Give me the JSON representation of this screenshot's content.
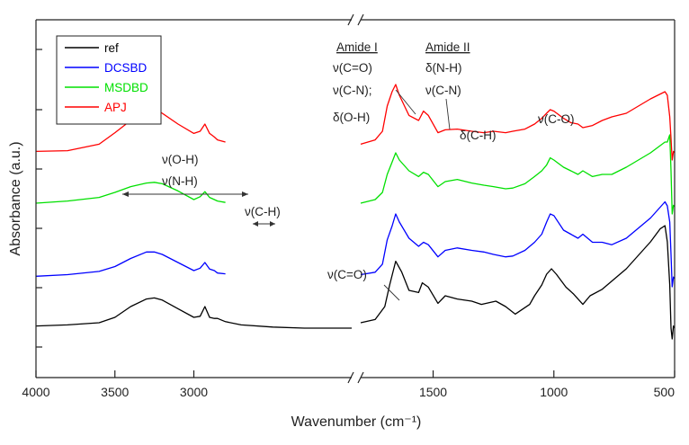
{
  "chart_data": {
    "type": "line",
    "xlabel": "Wavenumber (cm⁻¹)",
    "ylabel": "Absorbance (a.u.)",
    "x_ticks": [
      4000,
      3500,
      3000,
      1500,
      1000,
      500
    ],
    "x_tick_labels": [
      "4000",
      "3500",
      "3000",
      "1500",
      "1000",
      "500"
    ],
    "x_break": [
      2000,
      1800
    ],
    "legend": {
      "placement": "top-left",
      "entries": [
        {
          "name": "ref",
          "color": "#000000"
        },
        {
          "name": "DCSBD",
          "color": "#0000ff"
        },
        {
          "name": "MSDBD",
          "color": "#00e000"
        },
        {
          "name": "APJ",
          "color": "#ff0000"
        }
      ]
    },
    "annotations": {
      "amide1_header": "Amide I",
      "amide1_line1": "ν(C=O)",
      "amide1_line2": "ν(C-N);",
      "amide1_line3": "δ(O-H)",
      "amide2_header": "Amide II",
      "amide2_line1": "δ(N-H)",
      "amide2_line2": "ν(C-N)",
      "ch_bend": "δ(C-H)",
      "co_stretch": "ν(C-O)",
      "oh_stretch": "ν(O-H)",
      "nh_stretch": "ν(N-H)",
      "ch_stretch": "ν(C-H)",
      "co_stretch_ref": "ν(C=O)"
    },
    "series": [
      {
        "name": "ref",
        "color": "#000000",
        "x": [
          4000,
          3800,
          3600,
          3500,
          3400,
          3300,
          3250,
          3200,
          3100,
          3000,
          2960,
          2930,
          2900,
          2870,
          2850,
          2800,
          2700,
          2500,
          2300,
          2100,
          2000,
          1800,
          1740,
          1700,
          1680,
          1655,
          1630,
          1600,
          1560,
          1545,
          1520,
          1480,
          1450,
          1400,
          1340,
          1300,
          1240,
          1200,
          1160,
          1100,
          1080,
          1050,
          1030,
          1010,
          990,
          950,
          920,
          900,
          880,
          850,
          800,
          700,
          600,
          560,
          540,
          530,
          520,
          515,
          510,
          505,
          500
        ],
        "y": [
          0.02,
          0.03,
          0.05,
          0.1,
          0.2,
          0.27,
          0.28,
          0.26,
          0.18,
          0.1,
          0.11,
          0.2,
          0.1,
          0.09,
          0.09,
          0.06,
          0.03,
          0.01,
          0.0,
          0.0,
          0.0,
          0.05,
          0.08,
          0.2,
          0.4,
          0.62,
          0.52,
          0.35,
          0.33,
          0.42,
          0.38,
          0.23,
          0.3,
          0.27,
          0.25,
          0.22,
          0.25,
          0.2,
          0.13,
          0.22,
          0.3,
          0.4,
          0.5,
          0.55,
          0.5,
          0.38,
          0.32,
          0.27,
          0.22,
          0.3,
          0.36,
          0.55,
          0.8,
          0.92,
          0.95,
          0.8,
          0.4,
          0.0,
          -0.1,
          0.02,
          0.0
        ]
      },
      {
        "name": "DCSBD",
        "color": "#0000ff",
        "x": [
          4000,
          3800,
          3600,
          3500,
          3400,
          3300,
          3250,
          3200,
          3100,
          3000,
          2960,
          2930,
          2900,
          2870,
          2850,
          2800,
          1800,
          1740,
          1710,
          1690,
          1670,
          1655,
          1640,
          1600,
          1560,
          1540,
          1520,
          1480,
          1450,
          1400,
          1340,
          1290,
          1250,
          1200,
          1170,
          1120,
          1080,
          1050,
          1030,
          1015,
          1000,
          960,
          930,
          900,
          880,
          840,
          800,
          760,
          700,
          600,
          540,
          530,
          520,
          515,
          510,
          505,
          500
        ],
        "y": [
          0.03,
          0.05,
          0.09,
          0.15,
          0.25,
          0.33,
          0.33,
          0.3,
          0.2,
          0.1,
          0.13,
          0.2,
          0.12,
          0.1,
          0.07,
          0.06,
          0.05,
          0.08,
          0.18,
          0.48,
          0.65,
          0.8,
          0.7,
          0.5,
          0.4,
          0.45,
          0.42,
          0.27,
          0.35,
          0.38,
          0.35,
          0.33,
          0.3,
          0.27,
          0.28,
          0.35,
          0.45,
          0.55,
          0.7,
          0.8,
          0.78,
          0.6,
          0.55,
          0.5,
          0.55,
          0.45,
          0.45,
          0.42,
          0.5,
          0.75,
          0.95,
          0.9,
          0.7,
          0.3,
          -0.1,
          0.02,
          0.0
        ]
      },
      {
        "name": "MSDBD",
        "color": "#00e000",
        "x": [
          4000,
          3800,
          3600,
          3500,
          3400,
          3300,
          3250,
          3200,
          3100,
          3000,
          2960,
          2930,
          2900,
          2870,
          2850,
          2800,
          1800,
          1740,
          1710,
          1690,
          1670,
          1655,
          1640,
          1600,
          1560,
          1540,
          1520,
          1480,
          1450,
          1400,
          1340,
          1290,
          1250,
          1200,
          1170,
          1120,
          1080,
          1050,
          1030,
          1015,
          1000,
          960,
          930,
          900,
          880,
          840,
          800,
          760,
          700,
          600,
          540,
          530,
          520,
          515,
          510,
          505,
          500
        ],
        "y": [
          0.05,
          0.08,
          0.13,
          0.2,
          0.28,
          0.33,
          0.34,
          0.32,
          0.22,
          0.1,
          0.14,
          0.21,
          0.13,
          0.1,
          0.08,
          0.06,
          0.05,
          0.1,
          0.2,
          0.45,
          0.62,
          0.75,
          0.65,
          0.5,
          0.42,
          0.48,
          0.45,
          0.28,
          0.35,
          0.38,
          0.33,
          0.3,
          0.28,
          0.25,
          0.26,
          0.32,
          0.42,
          0.5,
          0.58,
          0.68,
          0.65,
          0.55,
          0.5,
          0.45,
          0.5,
          0.42,
          0.45,
          0.45,
          0.55,
          0.75,
          0.9,
          0.9,
          1.0,
          0.5,
          -0.1,
          0.02,
          0.0
        ]
      },
      {
        "name": "APJ",
        "color": "#ff0000",
        "x": [
          4000,
          3800,
          3600,
          3500,
          3400,
          3300,
          3250,
          3200,
          3100,
          3000,
          2960,
          2930,
          2900,
          2870,
          2850,
          2800,
          1800,
          1740,
          1710,
          1690,
          1670,
          1655,
          1640,
          1600,
          1560,
          1540,
          1520,
          1480,
          1450,
          1400,
          1340,
          1290,
          1250,
          1200,
          1170,
          1120,
          1080,
          1050,
          1030,
          1015,
          1000,
          960,
          930,
          900,
          880,
          840,
          800,
          760,
          700,
          600,
          540,
          530,
          520,
          515,
          510,
          505,
          500
        ],
        "y": [
          0.02,
          0.03,
          0.12,
          0.28,
          0.45,
          0.6,
          0.62,
          0.55,
          0.4,
          0.27,
          0.3,
          0.4,
          0.27,
          0.22,
          0.18,
          0.15,
          0.12,
          0.18,
          0.3,
          0.65,
          0.85,
          0.95,
          0.8,
          0.52,
          0.45,
          0.58,
          0.52,
          0.28,
          0.32,
          0.33,
          0.3,
          0.28,
          0.3,
          0.28,
          0.3,
          0.33,
          0.4,
          0.48,
          0.55,
          0.6,
          0.58,
          0.48,
          0.42,
          0.4,
          0.35,
          0.38,
          0.45,
          0.5,
          0.55,
          0.75,
          0.85,
          0.8,
          0.5,
          0.2,
          -0.1,
          0.02,
          0.0
        ]
      }
    ]
  }
}
